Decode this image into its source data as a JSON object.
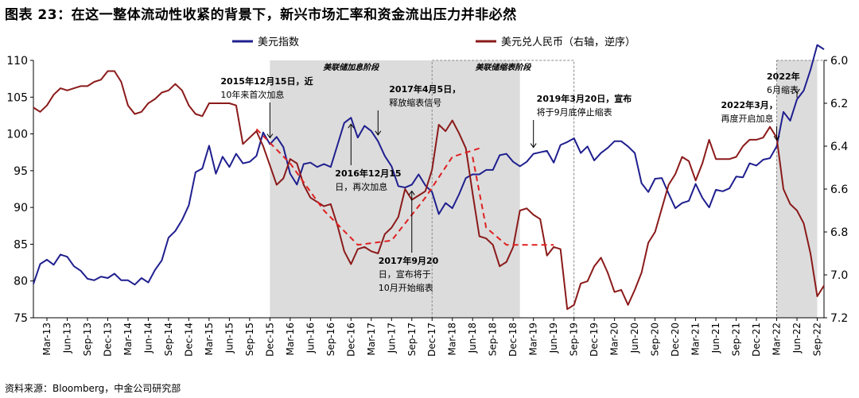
{
  "title": "图表 23：在这一整体流动性收紧的背景下，新兴市场汇率和资金流出压力并非必然",
  "source": "资料来源：Bloomberg，中金公司研究部",
  "chart_data": {
    "type": "line",
    "legend_position": "top-center",
    "grid": false,
    "x_range": [
      "2013-01",
      "2022-10"
    ],
    "x_ticks": [
      "Mar-13",
      "Jun-13",
      "Sep-13",
      "Dec-13",
      "Mar-14",
      "Jun-14",
      "Sep-14",
      "Dec-14",
      "Mar-15",
      "Jun-15",
      "Sep-15",
      "Dec-15",
      "Mar-16",
      "Jun-16",
      "Sep-16",
      "Dec-16",
      "Mar-17",
      "Jun-17",
      "Sep-17",
      "Dec-17",
      "Mar-18",
      "Jun-18",
      "Sep-18",
      "Dec-18",
      "Mar-19",
      "Jun-19",
      "Sep-19",
      "Dec-19",
      "Mar-20",
      "Jun-20",
      "Sep-20",
      "Dec-20",
      "Mar-21",
      "Jun-21",
      "Sep-21",
      "Dec-21",
      "Mar-22",
      "Jun-22",
      "Sep-22"
    ],
    "y_left": {
      "ylim": [
        75,
        110
      ],
      "ticks": [
        "75",
        "80",
        "85",
        "90",
        "95",
        "100",
        "105",
        "110"
      ]
    },
    "y_right": {
      "ylim": [
        6.0,
        7.2
      ],
      "inverted": true,
      "ticks": [
        "6.0",
        "6.2",
        "6.4",
        "6.6",
        "6.8",
        "7.0",
        "7.2"
      ]
    },
    "series": [
      {
        "name": "美元指数",
        "axis": "left",
        "color": "#1f1f8f",
        "points": [
          [
            "2013-01",
            79.6
          ],
          [
            "2013-02",
            82.3
          ],
          [
            "2013-03",
            82.9
          ],
          [
            "2013-04",
            82.2
          ],
          [
            "2013-05",
            83.6
          ],
          [
            "2013-06",
            83.3
          ],
          [
            "2013-07",
            82.0
          ],
          [
            "2013-08",
            81.4
          ],
          [
            "2013-09",
            80.3
          ],
          [
            "2013-10",
            80.1
          ],
          [
            "2013-11",
            80.6
          ],
          [
            "2013-12",
            80.4
          ],
          [
            "2014-01",
            81.0
          ],
          [
            "2014-02",
            80.1
          ],
          [
            "2014-03",
            80.1
          ],
          [
            "2014-04",
            79.5
          ],
          [
            "2014-05",
            80.4
          ],
          [
            "2014-06",
            79.8
          ],
          [
            "2014-07",
            81.5
          ],
          [
            "2014-08",
            82.8
          ],
          [
            "2014-09",
            85.9
          ],
          [
            "2014-10",
            86.8
          ],
          [
            "2014-11",
            88.3
          ],
          [
            "2014-12",
            90.3
          ],
          [
            "2015-01",
            94.8
          ],
          [
            "2015-02",
            95.3
          ],
          [
            "2015-03",
            98.4
          ],
          [
            "2015-04",
            94.6
          ],
          [
            "2015-05",
            96.9
          ],
          [
            "2015-06",
            95.5
          ],
          [
            "2015-07",
            97.3
          ],
          [
            "2015-08",
            96.0
          ],
          [
            "2015-09",
            96.2
          ],
          [
            "2015-10",
            97.0
          ],
          [
            "2015-11",
            100.2
          ],
          [
            "2015-12",
            98.6
          ],
          [
            "2016-01",
            99.6
          ],
          [
            "2016-02",
            98.2
          ],
          [
            "2016-03",
            94.6
          ],
          [
            "2016-04",
            93.1
          ],
          [
            "2016-05",
            95.9
          ],
          [
            "2016-06",
            96.1
          ],
          [
            "2016-07",
            95.5
          ],
          [
            "2016-08",
            95.9
          ],
          [
            "2016-09",
            95.5
          ],
          [
            "2016-10",
            98.5
          ],
          [
            "2016-11",
            101.5
          ],
          [
            "2016-12",
            102.2
          ],
          [
            "2017-01",
            99.5
          ],
          [
            "2017-02",
            101.1
          ],
          [
            "2017-03",
            100.4
          ],
          [
            "2017-04",
            99.0
          ],
          [
            "2017-05",
            97.0
          ],
          [
            "2017-06",
            95.6
          ],
          [
            "2017-07",
            92.9
          ],
          [
            "2017-08",
            92.7
          ],
          [
            "2017-09",
            93.1
          ],
          [
            "2017-10",
            94.5
          ],
          [
            "2017-11",
            93.0
          ],
          [
            "2017-12",
            92.1
          ],
          [
            "2018-01",
            89.1
          ],
          [
            "2018-02",
            90.6
          ],
          [
            "2018-03",
            89.9
          ],
          [
            "2018-04",
            91.8
          ],
          [
            "2018-05",
            94.0
          ],
          [
            "2018-06",
            94.5
          ],
          [
            "2018-07",
            94.5
          ],
          [
            "2018-08",
            95.1
          ],
          [
            "2018-09",
            95.1
          ],
          [
            "2018-10",
            97.1
          ],
          [
            "2018-11",
            97.3
          ],
          [
            "2018-12",
            96.2
          ],
          [
            "2019-01",
            95.6
          ],
          [
            "2019-02",
            96.2
          ],
          [
            "2019-03",
            97.3
          ],
          [
            "2019-04",
            97.5
          ],
          [
            "2019-05",
            97.7
          ],
          [
            "2019-06",
            96.1
          ],
          [
            "2019-07",
            98.5
          ],
          [
            "2019-08",
            98.9
          ],
          [
            "2019-09",
            99.4
          ],
          [
            "2019-10",
            97.4
          ],
          [
            "2019-11",
            98.3
          ],
          [
            "2019-12",
            96.4
          ],
          [
            "2020-01",
            97.4
          ],
          [
            "2020-02",
            98.1
          ],
          [
            "2020-03",
            99.0
          ],
          [
            "2020-04",
            99.0
          ],
          [
            "2020-05",
            98.3
          ],
          [
            "2020-06",
            97.4
          ],
          [
            "2020-07",
            93.3
          ],
          [
            "2020-08",
            92.1
          ],
          [
            "2020-09",
            93.9
          ],
          [
            "2020-10",
            94.0
          ],
          [
            "2020-11",
            91.9
          ],
          [
            "2020-12",
            89.9
          ],
          [
            "2021-01",
            90.6
          ],
          [
            "2021-02",
            90.9
          ],
          [
            "2021-03",
            93.2
          ],
          [
            "2021-04",
            91.3
          ],
          [
            "2021-05",
            90.0
          ],
          [
            "2021-06",
            92.4
          ],
          [
            "2021-07",
            92.2
          ],
          [
            "2021-08",
            92.6
          ],
          [
            "2021-09",
            94.2
          ],
          [
            "2021-10",
            94.1
          ],
          [
            "2021-11",
            96.0
          ],
          [
            "2021-12",
            95.7
          ],
          [
            "2022-01",
            96.5
          ],
          [
            "2022-02",
            96.7
          ],
          [
            "2022-03",
            98.3
          ],
          [
            "2022-04",
            103.0
          ],
          [
            "2022-05",
            101.8
          ],
          [
            "2022-06",
            104.7
          ],
          [
            "2022-07",
            105.9
          ],
          [
            "2022-08",
            108.7
          ],
          [
            "2022-09",
            112.1
          ],
          [
            "2022-10",
            111.5
          ]
        ]
      },
      {
        "name": "美元兑人民币（右轴，逆序）",
        "axis": "right",
        "color": "#8b1a1a",
        "points": [
          [
            "2013-01",
            6.22
          ],
          [
            "2013-02",
            6.24
          ],
          [
            "2013-03",
            6.21
          ],
          [
            "2013-04",
            6.16
          ],
          [
            "2013-05",
            6.13
          ],
          [
            "2013-06",
            6.14
          ],
          [
            "2013-07",
            6.13
          ],
          [
            "2013-08",
            6.12
          ],
          [
            "2013-09",
            6.12
          ],
          [
            "2013-10",
            6.1
          ],
          [
            "2013-11",
            6.09
          ],
          [
            "2013-12",
            6.05
          ],
          [
            "2014-01",
            6.05
          ],
          [
            "2014-02",
            6.1
          ],
          [
            "2014-03",
            6.21
          ],
          [
            "2014-04",
            6.25
          ],
          [
            "2014-05",
            6.24
          ],
          [
            "2014-06",
            6.2
          ],
          [
            "2014-07",
            6.18
          ],
          [
            "2014-08",
            6.15
          ],
          [
            "2014-09",
            6.14
          ],
          [
            "2014-10",
            6.11
          ],
          [
            "2014-11",
            6.14
          ],
          [
            "2014-12",
            6.21
          ],
          [
            "2015-01",
            6.25
          ],
          [
            "2015-02",
            6.26
          ],
          [
            "2015-03",
            6.2
          ],
          [
            "2015-04",
            6.2
          ],
          [
            "2015-05",
            6.2
          ],
          [
            "2015-06",
            6.2
          ],
          [
            "2015-07",
            6.21
          ],
          [
            "2015-08",
            6.39
          ],
          [
            "2015-09",
            6.36
          ],
          [
            "2015-10",
            6.33
          ],
          [
            "2015-11",
            6.4
          ],
          [
            "2015-12",
            6.49
          ],
          [
            "2016-01",
            6.58
          ],
          [
            "2016-02",
            6.55
          ],
          [
            "2016-03",
            6.46
          ],
          [
            "2016-04",
            6.48
          ],
          [
            "2016-05",
            6.58
          ],
          [
            "2016-06",
            6.64
          ],
          [
            "2016-07",
            6.66
          ],
          [
            "2016-08",
            6.68
          ],
          [
            "2016-09",
            6.67
          ],
          [
            "2016-10",
            6.77
          ],
          [
            "2016-11",
            6.89
          ],
          [
            "2016-12",
            6.95
          ],
          [
            "2017-01",
            6.88
          ],
          [
            "2017-02",
            6.87
          ],
          [
            "2017-03",
            6.89
          ],
          [
            "2017-04",
            6.9
          ],
          [
            "2017-05",
            6.81
          ],
          [
            "2017-06",
            6.78
          ],
          [
            "2017-07",
            6.73
          ],
          [
            "2017-08",
            6.6
          ],
          [
            "2017-09",
            6.65
          ],
          [
            "2017-10",
            6.63
          ],
          [
            "2017-11",
            6.61
          ],
          [
            "2017-12",
            6.51
          ],
          [
            "2018-01",
            6.3
          ],
          [
            "2018-02",
            6.33
          ],
          [
            "2018-03",
            6.28
          ],
          [
            "2018-04",
            6.34
          ],
          [
            "2018-05",
            6.41
          ],
          [
            "2018-06",
            6.62
          ],
          [
            "2018-07",
            6.82
          ],
          [
            "2018-08",
            6.83
          ],
          [
            "2018-09",
            6.86
          ],
          [
            "2018-10",
            6.96
          ],
          [
            "2018-11",
            6.94
          ],
          [
            "2018-12",
            6.87
          ],
          [
            "2019-01",
            6.7
          ],
          [
            "2019-02",
            6.69
          ],
          [
            "2019-03",
            6.72
          ],
          [
            "2019-04",
            6.74
          ],
          [
            "2019-05",
            6.91
          ],
          [
            "2019-06",
            6.87
          ],
          [
            "2019-07",
            6.88
          ],
          [
            "2019-08",
            7.16
          ],
          [
            "2019-09",
            7.14
          ],
          [
            "2019-10",
            7.04
          ],
          [
            "2019-11",
            7.03
          ],
          [
            "2019-12",
            6.96
          ],
          [
            "2020-01",
            6.92
          ],
          [
            "2020-02",
            6.99
          ],
          [
            "2020-03",
            7.08
          ],
          [
            "2020-04",
            7.07
          ],
          [
            "2020-05",
            7.14
          ],
          [
            "2020-06",
            7.07
          ],
          [
            "2020-07",
            6.99
          ],
          [
            "2020-08",
            6.85
          ],
          [
            "2020-09",
            6.8
          ],
          [
            "2020-10",
            6.69
          ],
          [
            "2020-11",
            6.58
          ],
          [
            "2020-12",
            6.53
          ],
          [
            "2021-01",
            6.45
          ],
          [
            "2021-02",
            6.47
          ],
          [
            "2021-03",
            6.56
          ],
          [
            "2021-04",
            6.48
          ],
          [
            "2021-05",
            6.37
          ],
          [
            "2021-06",
            6.46
          ],
          [
            "2021-07",
            6.46
          ],
          [
            "2021-08",
            6.46
          ],
          [
            "2021-09",
            6.45
          ],
          [
            "2021-10",
            6.4
          ],
          [
            "2021-11",
            6.37
          ],
          [
            "2021-12",
            6.37
          ],
          [
            "2022-01",
            6.36
          ],
          [
            "2022-02",
            6.31
          ],
          [
            "2022-03",
            6.36
          ],
          [
            "2022-04",
            6.6
          ],
          [
            "2022-05",
            6.67
          ],
          [
            "2022-06",
            6.7
          ],
          [
            "2022-07",
            6.76
          ],
          [
            "2022-08",
            6.9
          ],
          [
            "2022-09",
            7.1
          ],
          [
            "2022-10",
            7.05
          ]
        ]
      }
    ],
    "trend_lines": [
      {
        "axis": "right",
        "color": "#e02020",
        "dashed": true,
        "points": [
          [
            "2015-10",
            6.32
          ],
          [
            "2016-03",
            6.48
          ],
          [
            "2016-08",
            6.7
          ],
          [
            "2017-01",
            6.86
          ],
          [
            "2017-06",
            6.84
          ],
          [
            "2017-11",
            6.64
          ],
          [
            "2018-03",
            6.45
          ],
          [
            "2018-07",
            6.41
          ]
        ]
      },
      {
        "axis": "right",
        "color": "#e02020",
        "dashed": true,
        "points": [
          [
            "2018-06",
            6.45
          ],
          [
            "2018-08",
            6.78
          ],
          [
            "2018-11",
            6.86
          ],
          [
            "2019-04",
            6.86
          ],
          [
            "2019-06",
            6.86
          ]
        ]
      }
    ],
    "shaded_periods": [
      {
        "label": "美联储加息阶段",
        "start": "2015-12",
        "end": "2017-12",
        "style": "filled"
      },
      {
        "label": "美联储缩表阶段",
        "start": "2017-12",
        "end": "2019-09",
        "style": "dashed",
        "filled_until": "2019-01"
      },
      {
        "label": "",
        "start": "2022-03",
        "end": "2022-10",
        "style": "filled-dashed",
        "filled_until": "2022-09"
      }
    ],
    "annotations": [
      {
        "text": [
          "2015年12月15日，近",
          "10年来首次加息"
        ],
        "date": "2015-12",
        "arrow_to_series": "美元指数"
      },
      {
        "text": [
          "2016年12月15",
          "日，再次加息"
        ],
        "date": "2016-12",
        "arrow_to_series": "美元指数"
      },
      {
        "text": [
          "2017年4月5日，",
          "释放缩表信号"
        ],
        "date": "2017-04",
        "arrow_to_series": "美元指数"
      },
      {
        "text": [
          "2017年9月20",
          "日，宣布将于",
          "10月开始缩表"
        ],
        "date": "2017-09",
        "arrow_to_series": "美元指数"
      },
      {
        "text": [
          "2019年3月20日，宣布",
          "将于9月底停止缩表"
        ],
        "date": "2019-03",
        "arrow_to_series": "美元指数"
      },
      {
        "text": [
          "2022年3月，",
          "再度开启加息"
        ],
        "date": "2022-03",
        "arrow_to_series": "美元指数"
      },
      {
        "text": [
          "2022年",
          "6月缩表"
        ],
        "date": "2022-06",
        "arrow_to_series": "美元指数"
      }
    ]
  }
}
